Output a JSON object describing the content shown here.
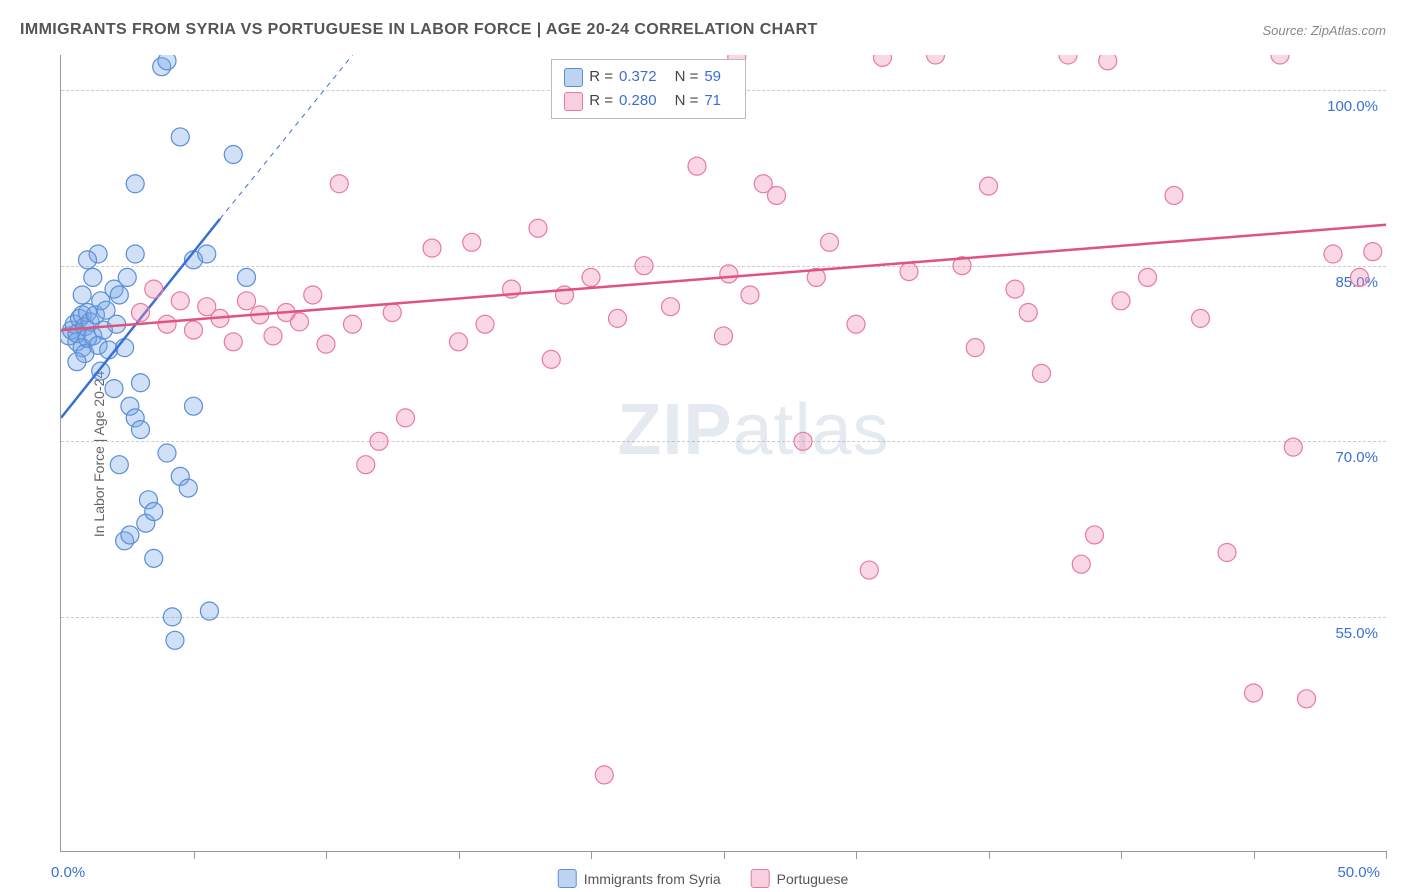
{
  "title": "IMMIGRANTS FROM SYRIA VS PORTUGUESE IN LABOR FORCE | AGE 20-24 CORRELATION CHART",
  "source": "Source: ZipAtlas.com",
  "ylabel": "In Labor Force | Age 20-24",
  "watermark": "ZIPatlas",
  "chart": {
    "type": "scatter",
    "xlim": [
      0,
      50
    ],
    "ylim": [
      35,
      103
    ],
    "yticks": [
      55.0,
      70.0,
      85.0,
      100.0
    ],
    "xaxis_left_label": "0.0%",
    "xaxis_right_label": "50.0%",
    "xtick_positions": [
      5,
      10,
      15,
      20,
      25,
      30,
      35,
      40,
      45,
      50
    ],
    "grid_color": "#cccccc",
    "axis_color": "#999999",
    "label_color": "#3b6fd6",
    "background_color": "#ffffff",
    "marker_radius": 9,
    "marker_stroke_width": 1.2,
    "series": [
      {
        "name": "Immigrants from Syria",
        "fill": "rgba(120,165,230,0.35)",
        "stroke": "#5a8fd6",
        "swatch_fill": "#bcd4f2",
        "swatch_border": "#5a8fd6",
        "stats": {
          "R": "0.372",
          "N": "59"
        },
        "trend": {
          "x1": 0,
          "y1": 72,
          "x2": 6,
          "y2": 89,
          "color": "#3b6fd6",
          "width": 2.5,
          "dash_ext": {
            "x1": 6,
            "y1": 89,
            "x2": 11,
            "y2": 103
          }
        },
        "points": [
          [
            0.3,
            79
          ],
          [
            0.4,
            79.5
          ],
          [
            0.5,
            80
          ],
          [
            0.6,
            78.5
          ],
          [
            0.6,
            79.2
          ],
          [
            0.7,
            80.5
          ],
          [
            0.8,
            78
          ],
          [
            0.8,
            80.8
          ],
          [
            0.9,
            77.5
          ],
          [
            0.9,
            79.8
          ],
          [
            1.0,
            81
          ],
          [
            1.0,
            78.8
          ],
          [
            1.1,
            80.2
          ],
          [
            1.2,
            79
          ],
          [
            1.3,
            80.8
          ],
          [
            1.4,
            78.2
          ],
          [
            1.5,
            82
          ],
          [
            1.5,
            76
          ],
          [
            1.6,
            79.5
          ],
          [
            1.7,
            81.2
          ],
          [
            1.8,
            77.8
          ],
          [
            2.0,
            83
          ],
          [
            2.0,
            74.5
          ],
          [
            2.1,
            80
          ],
          [
            2.2,
            82.5
          ],
          [
            2.4,
            78
          ],
          [
            2.5,
            84
          ],
          [
            2.6,
            73
          ],
          [
            2.8,
            86
          ],
          [
            2.8,
            72
          ],
          [
            3.0,
            75
          ],
          [
            3.0,
            71
          ],
          [
            3.2,
            63
          ],
          [
            3.3,
            65
          ],
          [
            3.5,
            64
          ],
          [
            3.5,
            60
          ],
          [
            3.8,
            102
          ],
          [
            4.0,
            102.5
          ],
          [
            4.0,
            69
          ],
          [
            4.2,
            55
          ],
          [
            4.3,
            53
          ],
          [
            4.5,
            96
          ],
          [
            4.5,
            67
          ],
          [
            4.8,
            66
          ],
          [
            5.0,
            85.5
          ],
          [
            5.0,
            73
          ],
          [
            5.5,
            86
          ],
          [
            5.6,
            55.5
          ],
          [
            6.5,
            94.5
          ],
          [
            7.0,
            84
          ],
          [
            1.2,
            84
          ],
          [
            1.4,
            86
          ],
          [
            1.0,
            85.5
          ],
          [
            2.2,
            68
          ],
          [
            2.4,
            61.5
          ],
          [
            2.6,
            62
          ],
          [
            2.8,
            92
          ],
          [
            0.8,
            82.5
          ],
          [
            0.6,
            76.8
          ]
        ]
      },
      {
        "name": "Portuguese",
        "fill": "rgba(240,140,180,0.35)",
        "stroke": "#e77aa5",
        "swatch_fill": "#f8cfdf",
        "swatch_border": "#e77aa5",
        "stats": {
          "R": "0.280",
          "N": "71"
        },
        "trend": {
          "x1": 0,
          "y1": 79.5,
          "x2": 50,
          "y2": 88.5,
          "color": "#e0527f",
          "width": 2.5
        },
        "points": [
          [
            3,
            81
          ],
          [
            3.5,
            83
          ],
          [
            4,
            80
          ],
          [
            4.5,
            82
          ],
          [
            5,
            79.5
          ],
          [
            5.5,
            81.5
          ],
          [
            6,
            80.5
          ],
          [
            6.5,
            78.5
          ],
          [
            7,
            82
          ],
          [
            7.5,
            80.8
          ],
          [
            8,
            79
          ],
          [
            8.5,
            81
          ],
          [
            9,
            80.2
          ],
          [
            9.5,
            82.5
          ],
          [
            10,
            78.3
          ],
          [
            10.5,
            92
          ],
          [
            11,
            80
          ],
          [
            11.5,
            68
          ],
          [
            12,
            70
          ],
          [
            12.5,
            81
          ],
          [
            13,
            72
          ],
          [
            14,
            86.5
          ],
          [
            15,
            78.5
          ],
          [
            15.5,
            87
          ],
          [
            16,
            80
          ],
          [
            17,
            83
          ],
          [
            18,
            88.2
          ],
          [
            18.5,
            77
          ],
          [
            19,
            82.5
          ],
          [
            20,
            84
          ],
          [
            20.5,
            41.5
          ],
          [
            21,
            80.5
          ],
          [
            22,
            85
          ],
          [
            23,
            81.5
          ],
          [
            24,
            93.5
          ],
          [
            25,
            79
          ],
          [
            25.5,
            102.8
          ],
          [
            26,
            82.5
          ],
          [
            26.5,
            92
          ],
          [
            27,
            91
          ],
          [
            28,
            70
          ],
          [
            28.5,
            84
          ],
          [
            29,
            87
          ],
          [
            30,
            80
          ],
          [
            30.5,
            59
          ],
          [
            31,
            102.8
          ],
          [
            32,
            84.5
          ],
          [
            33,
            103
          ],
          [
            34,
            85
          ],
          [
            34.5,
            78
          ],
          [
            35,
            91.8
          ],
          [
            36,
            83
          ],
          [
            36.5,
            81
          ],
          [
            37,
            75.8
          ],
          [
            38,
            103
          ],
          [
            38.5,
            59.5
          ],
          [
            39,
            62
          ],
          [
            39.5,
            102.5
          ],
          [
            40,
            82
          ],
          [
            41,
            84
          ],
          [
            42,
            91
          ],
          [
            43,
            80.5
          ],
          [
            44,
            60.5
          ],
          [
            45,
            48.5
          ],
          [
            46,
            103
          ],
          [
            46.5,
            69.5
          ],
          [
            47,
            48
          ],
          [
            48,
            86
          ],
          [
            49,
            84
          ],
          [
            49.5,
            86.2
          ],
          [
            25.2,
            84.3
          ]
        ]
      }
    ]
  },
  "legend": {
    "item1": "Immigrants from Syria",
    "item2": "Portuguese"
  }
}
